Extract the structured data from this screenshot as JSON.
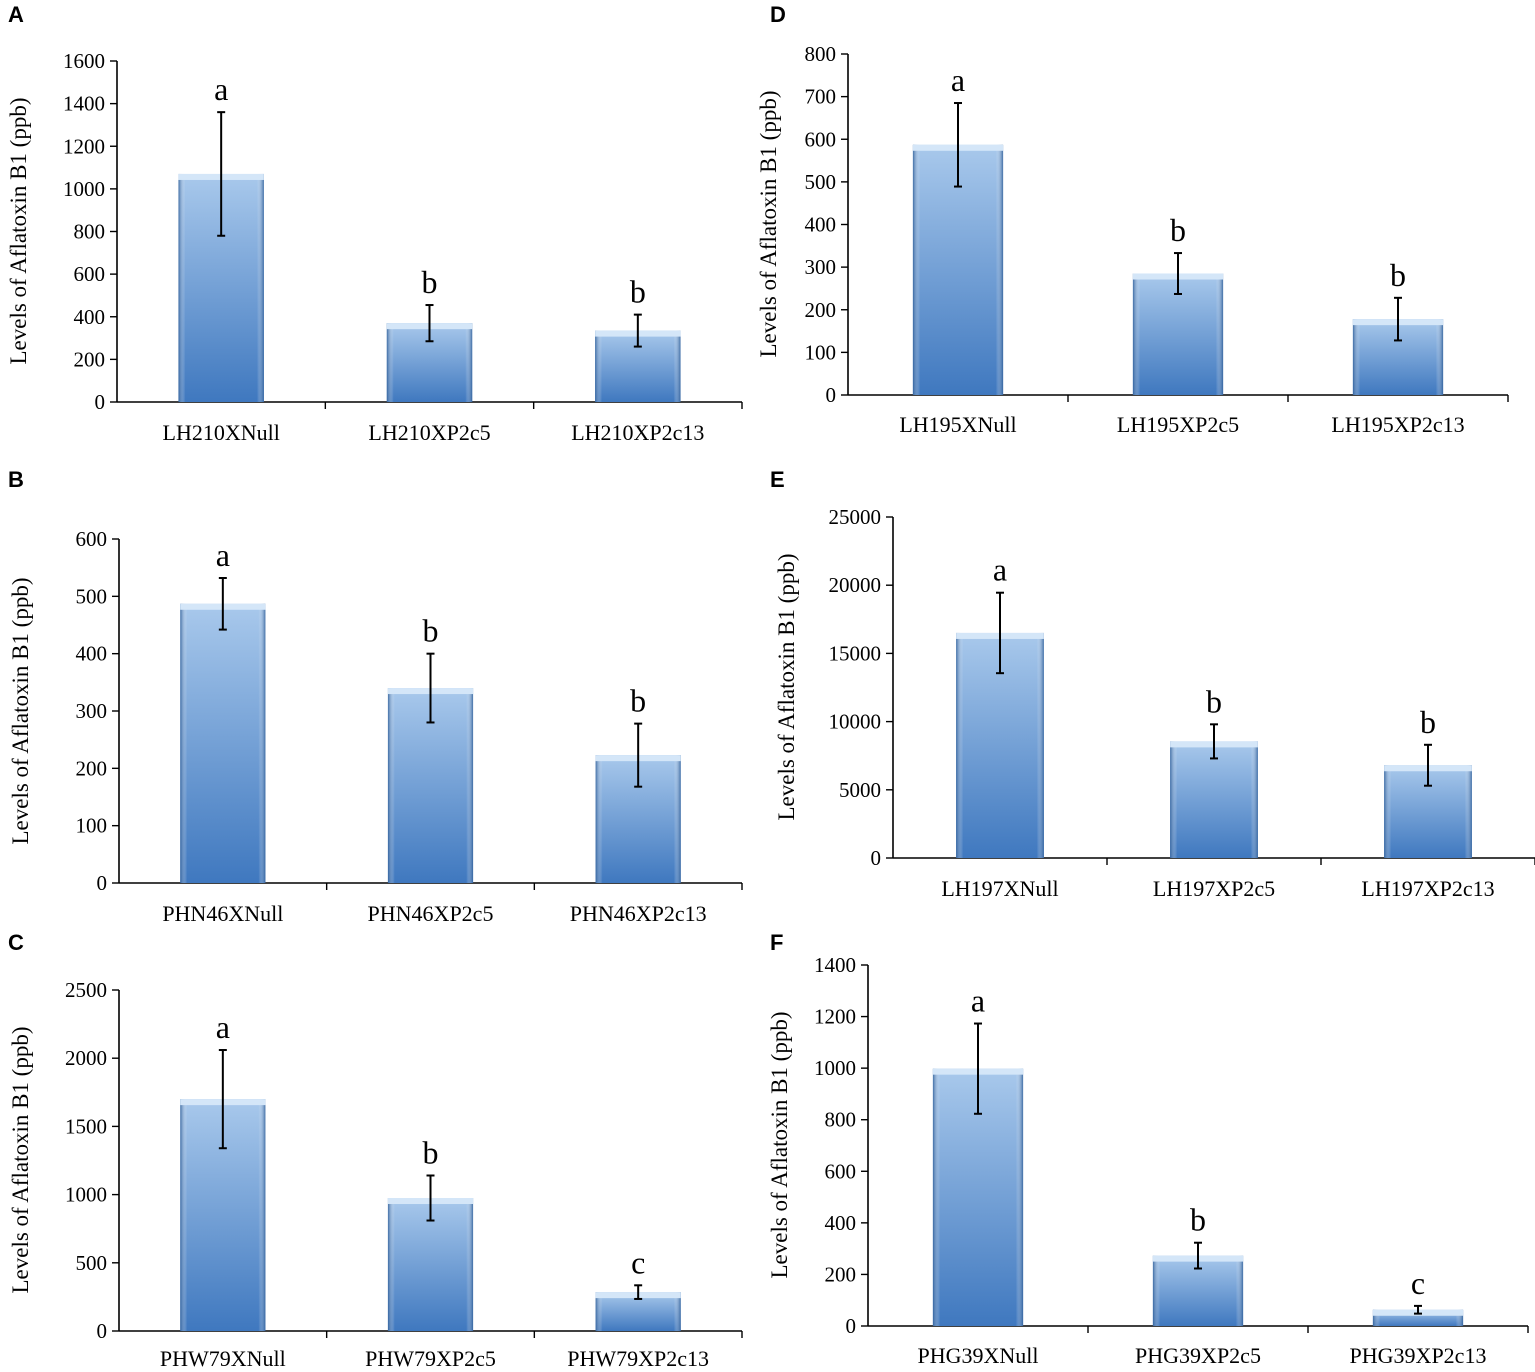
{
  "chart_data": [
    {
      "panel": "A",
      "type": "bar",
      "categories": [
        "LH210XNull",
        "LH210XP2c5",
        "LH210XP2c13"
      ],
      "values": [
        1070,
        370,
        335
      ],
      "errors": [
        290,
        85,
        75
      ],
      "significance": [
        "a",
        "b",
        "b"
      ],
      "ylabel": "Levels of Aflatoxin B1 (ppb)",
      "ylim": [
        0,
        1600
      ],
      "yticks": [
        "0",
        "200",
        "400",
        "600",
        "800",
        "1000",
        "1200",
        "1400",
        "1600"
      ]
    },
    {
      "panel": "B",
      "type": "bar",
      "categories": [
        "PHN46XNull",
        "PHN46XP2c5",
        "PHN46XP2c13"
      ],
      "values": [
        487,
        340,
        223
      ],
      "errors": [
        45,
        60,
        55
      ],
      "significance": [
        "a",
        "b",
        "b"
      ],
      "ylabel": "Levels of Aflatoxin B1 (ppb)",
      "ylim": [
        0,
        600
      ],
      "yticks": [
        "0",
        "100",
        "200",
        "300",
        "400",
        "500",
        "600"
      ]
    },
    {
      "panel": "C",
      "type": "bar",
      "categories": [
        "PHW79XNull",
        "PHW79XP2c5",
        "PHW79XP2c13"
      ],
      "values": [
        1700,
        975,
        285
      ],
      "errors": [
        360,
        165,
        50
      ],
      "significance": [
        "a",
        "b",
        "c"
      ],
      "ylabel": "Levels of Aflatoxin B1 (ppb)",
      "ylim": [
        0,
        2500
      ],
      "yticks": [
        "0",
        "500",
        "1000",
        "1500",
        "2000",
        "2500"
      ]
    },
    {
      "panel": "D",
      "type": "bar",
      "categories": [
        "LH195XNull",
        "LH195XP2c5",
        "LH195XP2c13"
      ],
      "values": [
        587,
        285,
        178
      ],
      "errors": [
        98,
        48,
        50
      ],
      "significance": [
        "a",
        "b",
        "b"
      ],
      "ylabel": "Levels of Aflatoxin B1 (ppb)",
      "ylim": [
        0,
        800
      ],
      "yticks": [
        "0",
        "100",
        "200",
        "300",
        "400",
        "500",
        "600",
        "700",
        "800"
      ]
    },
    {
      "panel": "E",
      "type": "bar",
      "categories": [
        "LH197XNull",
        "LH197XP2c5",
        "LH197XP2c13"
      ],
      "values": [
        16500,
        8550,
        6800
      ],
      "errors": [
        2950,
        1250,
        1500
      ],
      "significance": [
        "a",
        "b",
        "b"
      ],
      "ylabel": "Levels of Aflatoxin B1 (ppb)",
      "ylim": [
        0,
        25000
      ],
      "yticks": [
        "0",
        "5000",
        "10000",
        "15000",
        "20000",
        "25000"
      ]
    },
    {
      "panel": "F",
      "type": "bar",
      "categories": [
        "PHG39XNull",
        "PHG39XP2c5",
        "PHG39XP2c13"
      ],
      "values": [
        998,
        273,
        63
      ],
      "errors": [
        175,
        50,
        15
      ],
      "significance": [
        "a",
        "b",
        "c"
      ],
      "ylabel": "Levels of Aflatoxin B1 (ppb)",
      "ylim": [
        0,
        1400
      ],
      "yticks": [
        "0",
        "200",
        "400",
        "600",
        "800",
        "1000",
        "1200",
        "1400"
      ]
    }
  ]
}
